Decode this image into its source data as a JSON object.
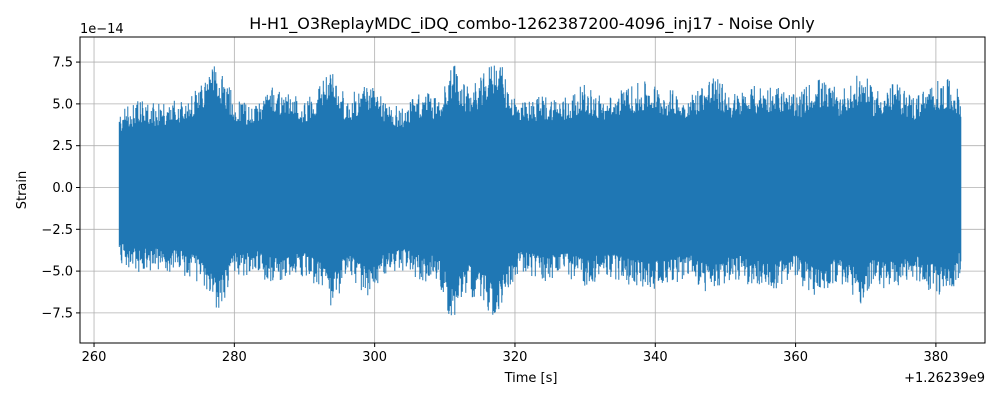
{
  "chart_data": {
    "type": "line",
    "title": "H-H1_O3ReplayMDC_iDQ_combo-1262387200-4096_inj17 - Noise Only",
    "xlabel": "Time [s]",
    "ylabel": "Strain",
    "x_offset_label": "+1.26239e9",
    "y_scale_label": "1e−14",
    "xlim": [
      258,
      387
    ],
    "ylim": [
      -9.3,
      9.0
    ],
    "x_ticks": [
      260,
      280,
      300,
      320,
      340,
      360,
      380
    ],
    "x_tick_labels": [
      "260",
      "280",
      "300",
      "320",
      "340",
      "360",
      "380"
    ],
    "y_ticks": [
      -7.5,
      -5.0,
      -2.5,
      0.0,
      2.5,
      5.0,
      7.5
    ],
    "y_tick_labels": [
      "−7.5",
      "−5.0",
      "−2.5",
      "0.0",
      "2.5",
      "5.0",
      "7.5"
    ],
    "grid": true,
    "series": [
      {
        "color": "#1f77b4",
        "x_start": 263.6,
        "x_end": 383.6,
        "envelope": {
          "x": [
            263.6,
            266,
            270,
            274,
            276.5,
            277.5,
            280,
            283,
            285,
            288,
            290,
            292,
            294,
            296,
            299,
            301,
            304,
            307,
            309,
            311.2,
            313,
            315,
            317.5,
            319,
            321,
            324,
            327,
            330,
            333,
            336,
            339,
            342,
            345,
            348,
            351,
            354,
            357,
            360,
            363,
            366,
            368,
            369.5,
            371,
            374,
            377,
            380,
            382,
            383.6
          ],
          "upper": [
            4.5,
            5.2,
            5.0,
            5.6,
            7.0,
            7.4,
            5.5,
            5.0,
            6.4,
            5.6,
            5.3,
            6.2,
            7.2,
            5.3,
            6.5,
            5.4,
            4.9,
            5.9,
            5.4,
            7.6,
            6.0,
            6.5,
            8.1,
            6.2,
            5.1,
            5.6,
            5.5,
            6.2,
            5.4,
            6.1,
            6.4,
            5.9,
            5.6,
            6.9,
            5.7,
            6.1,
            6.3,
            5.5,
            6.7,
            5.9,
            6.3,
            7.1,
            5.9,
            6.3,
            5.6,
            6.4,
            6.5,
            5.7
          ],
          "lower": [
            -4.5,
            -5.1,
            -5.0,
            -5.4,
            -6.5,
            -7.6,
            -5.4,
            -5.2,
            -5.8,
            -5.3,
            -5.4,
            -6.1,
            -7.3,
            -5.4,
            -6.7,
            -5.5,
            -5.0,
            -5.8,
            -5.5,
            -8.4,
            -6.3,
            -6.9,
            -8.1,
            -6.0,
            -5.2,
            -5.7,
            -5.4,
            -5.9,
            -5.4,
            -5.8,
            -6.2,
            -5.7,
            -5.6,
            -6.6,
            -5.5,
            -5.9,
            -6.2,
            -5.6,
            -6.6,
            -5.7,
            -6.4,
            -7.2,
            -5.9,
            -6.2,
            -5.6,
            -6.5,
            -6.3,
            -5.2
          ]
        }
      }
    ]
  }
}
